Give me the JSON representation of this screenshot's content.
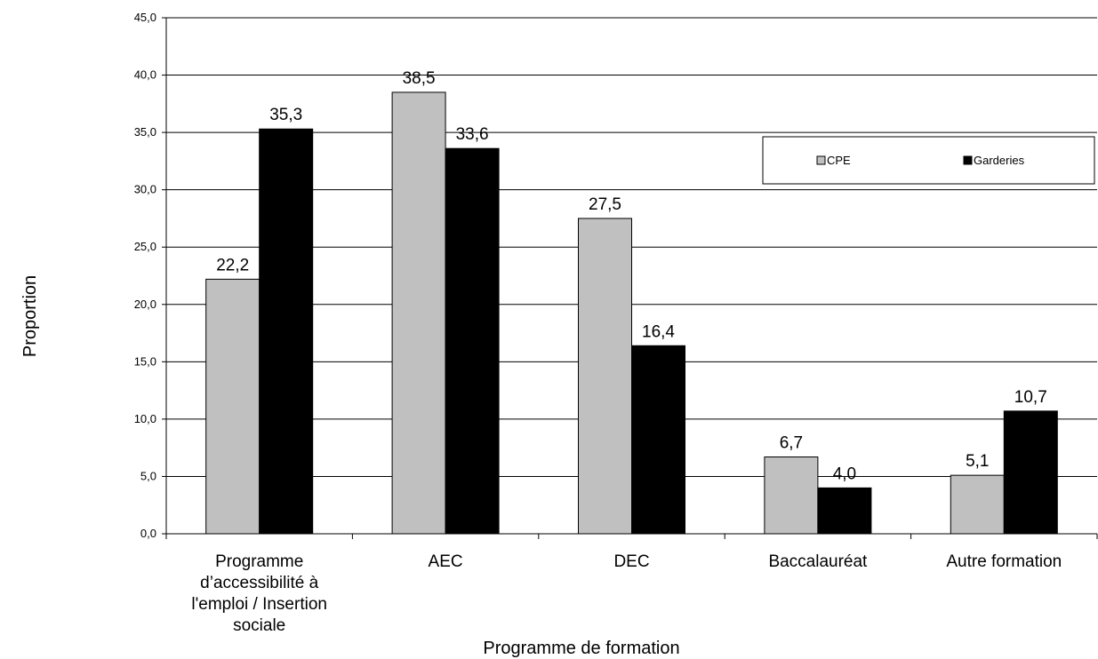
{
  "chart_data": {
    "type": "bar",
    "title": "",
    "xlabel": "Programme de formation",
    "ylabel": "Proportion",
    "categories": [
      [
        "Programme",
        "d’accessibilité à",
        "l'emploi / Insertion",
        "sociale"
      ],
      [
        "AEC"
      ],
      [
        "DEC"
      ],
      [
        "Baccalauréat"
      ],
      [
        "Autre formation"
      ]
    ],
    "series": [
      {
        "name": "CPE",
        "color": "#c0c0c0",
        "values": [
          22.2,
          38.5,
          27.5,
          6.7,
          5.1
        ],
        "labels": [
          "22,2",
          "38,5",
          "27,5",
          "6,7",
          "5,1"
        ]
      },
      {
        "name": "Garderies",
        "color": "#000000",
        "values": [
          35.3,
          33.6,
          16.4,
          4.0,
          10.7
        ],
        "labels": [
          "35,3",
          "33,6",
          "16,4",
          "4,0",
          "10,7"
        ]
      }
    ],
    "ylim": [
      0,
      45
    ],
    "yticks": [
      0,
      5,
      10,
      15,
      20,
      25,
      30,
      35,
      40,
      45
    ],
    "ytick_labels": [
      "0,0",
      "5,0",
      "10,0",
      "15,0",
      "20,0",
      "25,0",
      "30,0",
      "35,0",
      "40,0",
      "45,0"
    ],
    "grid": true,
    "legend_position": "top-right"
  }
}
